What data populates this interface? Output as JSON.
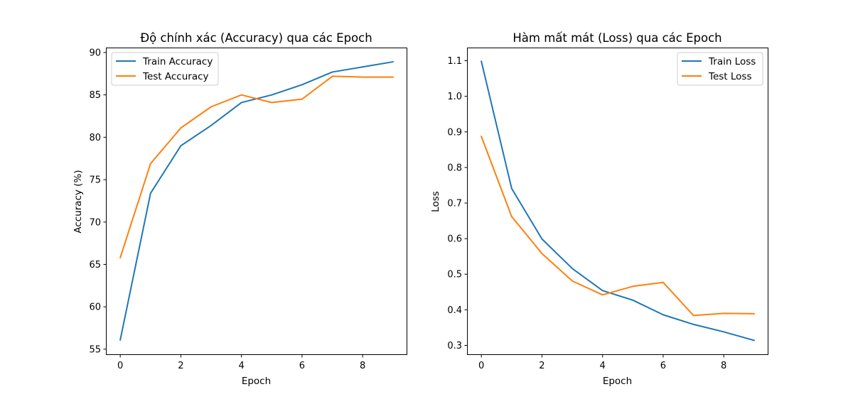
{
  "colors": {
    "train": "#1f77b4",
    "test": "#ff7f0e"
  },
  "chart_data": [
    {
      "type": "line",
      "title": "Độ chính xác (Accuracy) qua các Epoch",
      "xlabel": "Epoch",
      "ylabel": "Accuracy (%)",
      "xlim": [
        -0.45,
        9.45
      ],
      "ylim": [
        54.4,
        90.5
      ],
      "xticks": [
        0,
        2,
        4,
        6,
        8
      ],
      "yticks": [
        55,
        60,
        65,
        70,
        75,
        80,
        85,
        90
      ],
      "legend_position": "top-left",
      "x": [
        0,
        1,
        2,
        3,
        4,
        5,
        6,
        7,
        8,
        9
      ],
      "series": [
        {
          "name": "Train Accuracy",
          "color_key": "train",
          "values": [
            56.1,
            73.4,
            79.0,
            81.4,
            84.1,
            85.0,
            86.2,
            87.7,
            88.3,
            88.9
          ]
        },
        {
          "name": "Test Accuracy",
          "color_key": "test",
          "values": [
            65.8,
            76.9,
            81.1,
            83.6,
            85.0,
            84.1,
            84.5,
            87.2,
            87.1,
            87.1
          ]
        }
      ]
    },
    {
      "type": "line",
      "title": "Hàm mất mát (Loss) qua các Epoch",
      "xlabel": "Epoch",
      "ylabel": "Loss",
      "xlim": [
        -0.45,
        9.45
      ],
      "ylim": [
        0.275,
        1.135
      ],
      "xticks": [
        0,
        2,
        4,
        6,
        8
      ],
      "yticks": [
        0.3,
        0.4,
        0.5,
        0.6,
        0.7,
        0.8,
        0.9,
        1.0,
        1.1
      ],
      "legend_position": "top-right",
      "x": [
        0,
        1,
        2,
        3,
        4,
        5,
        6,
        7,
        8,
        9
      ],
      "series": [
        {
          "name": "Train Loss",
          "color_key": "train",
          "values": [
            1.098,
            0.741,
            0.599,
            0.516,
            0.454,
            0.427,
            0.386,
            0.359,
            0.338,
            0.314
          ]
        },
        {
          "name": "Test Loss",
          "color_key": "test",
          "values": [
            0.887,
            0.662,
            0.558,
            0.481,
            0.442,
            0.466,
            0.477,
            0.384,
            0.39,
            0.389
          ]
        }
      ]
    }
  ]
}
